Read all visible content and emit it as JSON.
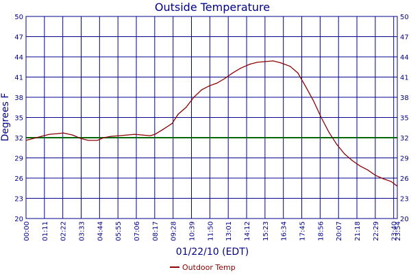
{
  "chart_data": {
    "type": "line",
    "title": "Outside Temperature",
    "xlabel": "01/22/10 (EDT)",
    "ylabel": "Degrees F",
    "ylim": [
      20,
      50
    ],
    "yticks": [
      20,
      23,
      26,
      29,
      32,
      35,
      38,
      41,
      44,
      47,
      50
    ],
    "x_range_hours": [
      0,
      23.9
    ],
    "xticks": [
      {
        "h": 0.0,
        "label": "00:00"
      },
      {
        "h": 1.1833,
        "label": "01:11"
      },
      {
        "h": 2.3667,
        "label": "02:22"
      },
      {
        "h": 3.55,
        "label": "03:33"
      },
      {
        "h": 4.7333,
        "label": "04:44"
      },
      {
        "h": 5.9167,
        "label": "05:55"
      },
      {
        "h": 7.1,
        "label": "07:06"
      },
      {
        "h": 8.2833,
        "label": "08:17"
      },
      {
        "h": 9.4667,
        "label": "09:28"
      },
      {
        "h": 10.65,
        "label": "10:39"
      },
      {
        "h": 11.8333,
        "label": "11:50"
      },
      {
        "h": 13.0167,
        "label": "13:01"
      },
      {
        "h": 14.2,
        "label": "14:12"
      },
      {
        "h": 15.3833,
        "label": "15:23"
      },
      {
        "h": 16.5667,
        "label": "16:34"
      },
      {
        "h": 17.75,
        "label": "17:45"
      },
      {
        "h": 18.9333,
        "label": "18:56"
      },
      {
        "h": 20.1167,
        "label": "20:07"
      },
      {
        "h": 21.3,
        "label": "21:18"
      },
      {
        "h": 22.4833,
        "label": "22:29"
      },
      {
        "h": 23.6667,
        "label": "23:40"
      },
      {
        "h": 23.9,
        "label": "23:54"
      }
    ],
    "grid": true,
    "reference_line": {
      "value": 32,
      "color": "#006400"
    },
    "series": [
      {
        "name": "Outdoor Temp",
        "color": "#8b0000",
        "points": [
          [
            0.0,
            31.6
          ],
          [
            0.5,
            31.9
          ],
          [
            1.0,
            32.2
          ],
          [
            1.5,
            32.5
          ],
          [
            2.0,
            32.6
          ],
          [
            2.4,
            32.7
          ],
          [
            3.0,
            32.4
          ],
          [
            3.5,
            31.9
          ],
          [
            4.0,
            31.6
          ],
          [
            4.6,
            31.6
          ],
          [
            5.0,
            32.0
          ],
          [
            5.5,
            32.2
          ],
          [
            6.0,
            32.3
          ],
          [
            6.5,
            32.4
          ],
          [
            7.0,
            32.5
          ],
          [
            7.5,
            32.4
          ],
          [
            8.0,
            32.3
          ],
          [
            8.3,
            32.5
          ],
          [
            8.8,
            33.2
          ],
          [
            9.4,
            34.1
          ],
          [
            9.8,
            35.5
          ],
          [
            10.3,
            36.5
          ],
          [
            10.8,
            38.0
          ],
          [
            11.3,
            39.1
          ],
          [
            11.8,
            39.7
          ],
          [
            12.3,
            40.1
          ],
          [
            12.8,
            40.8
          ],
          [
            13.3,
            41.6
          ],
          [
            13.8,
            42.3
          ],
          [
            14.4,
            42.9
          ],
          [
            14.9,
            43.2
          ],
          [
            15.4,
            43.3
          ],
          [
            15.9,
            43.4
          ],
          [
            16.4,
            43.1
          ],
          [
            17.0,
            42.6
          ],
          [
            17.5,
            41.6
          ],
          [
            18.0,
            39.6
          ],
          [
            18.5,
            37.5
          ],
          [
            19.0,
            35.0
          ],
          [
            19.5,
            32.8
          ],
          [
            20.0,
            31.0
          ],
          [
            20.5,
            29.6
          ],
          [
            21.0,
            28.6
          ],
          [
            21.5,
            27.8
          ],
          [
            22.0,
            27.2
          ],
          [
            22.5,
            26.4
          ],
          [
            23.0,
            25.9
          ],
          [
            23.5,
            25.5
          ],
          [
            23.9,
            24.8
          ]
        ]
      }
    ],
    "legend": {
      "placement": "bottom-center",
      "entries": [
        "Outdoor Temp"
      ]
    }
  }
}
